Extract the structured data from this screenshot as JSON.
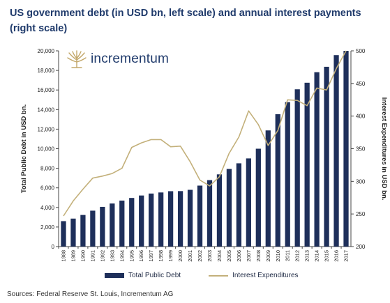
{
  "title": "US government debt (in USD bn, left scale) and annual interest payments (right scale)",
  "source": "Sources: Federal Reserve St. Louis, Incrementum AG",
  "logo_text": "incrementum",
  "colors": {
    "bar": "#1e2f5a",
    "line": "#c3b07a",
    "title": "#1f3a6b"
  },
  "chart_data": {
    "type": "bar",
    "title": "US government debt (in USD bn, left scale) and annual interest payments (right scale)",
    "categories": [
      "1988",
      "1989",
      "1990",
      "1991",
      "1992",
      "1993",
      "1994",
      "1995",
      "1996",
      "1997",
      "1998",
      "1999",
      "2000",
      "2001",
      "2002",
      "2003",
      "2004",
      "2005",
      "2006",
      "2007",
      "2008",
      "2009",
      "2010",
      "2011",
      "2012",
      "2013",
      "2014",
      "2015",
      "2016",
      "2017"
    ],
    "series": [
      {
        "name": "Total Public Debt",
        "type": "bar",
        "axis": "left",
        "values": [
          2600,
          2860,
          3230,
          3670,
          4060,
          4400,
          4700,
          4970,
          5220,
          5420,
          5530,
          5660,
          5670,
          5800,
          6230,
          6790,
          7380,
          7930,
          8510,
          9010,
          10000,
          11870,
          13530,
          14760,
          16070,
          16740,
          17820,
          18370,
          19560,
          20000
        ]
      },
      {
        "name": "Interest Expenditures",
        "type": "line",
        "axis": "right",
        "values": [
          247,
          270,
          288,
          305,
          308,
          312,
          320,
          352,
          359,
          364,
          364,
          353,
          354,
          330,
          302,
          293,
          307,
          343,
          368,
          408,
          387,
          355,
          378,
          425,
          424,
          416,
          443,
          440,
          473,
          500
        ]
      }
    ],
    "ylabel": "Total Public Debt in USD bn.",
    "y2label": "Interest Expenditures in USD bn.",
    "ylim": [
      0,
      20000
    ],
    "y2lim": [
      200,
      500
    ],
    "yticks": [
      "0",
      "2,000",
      "4,000",
      "6,000",
      "8,000",
      "10,000",
      "12,000",
      "14,000",
      "16,000",
      "18,000",
      "20,000"
    ],
    "y2ticks": [
      "200",
      "250",
      "300",
      "350",
      "400",
      "450",
      "500"
    ],
    "grid": false,
    "legend_position": "bottom"
  }
}
